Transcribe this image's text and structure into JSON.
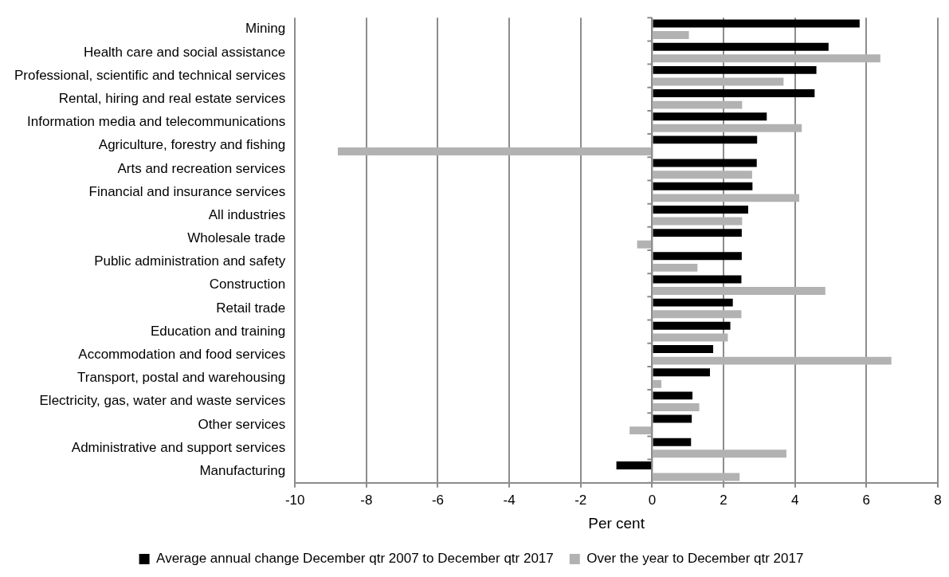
{
  "chart_data": {
    "type": "bar",
    "orientation": "horizontal",
    "xlabel": "Per cent",
    "categories": [
      "Mining",
      "Health care and social assistance",
      "Professional, scientific and technical services",
      "Rental, hiring and real estate services",
      "Information media and telecommunications",
      "Agriculture, forestry and fishing",
      "Arts and recreation services",
      "Financial and insurance services",
      "All industries",
      "Wholesale trade",
      "Public administration and safety",
      "Construction",
      "Retail trade",
      "Education and training",
      "Accommodation and food services",
      "Transport, postal and warehousing",
      "Electricity, gas, water and waste services",
      "Other services",
      "Administrative and support services",
      "Manufacturing"
    ],
    "series": [
      {
        "name": "Average annual change December qtr 2007 to December qtr 2017",
        "color": "#000000",
        "values": [
          5.81,
          4.94,
          4.6,
          4.55,
          3.21,
          2.94,
          2.93,
          2.81,
          2.69,
          2.51,
          2.51,
          2.5,
          2.26,
          2.19,
          1.71,
          1.62,
          1.13,
          1.11,
          1.09,
          -1.0
        ]
      },
      {
        "name": "Over the year to December qtr 2017",
        "color": "#b2b2b2",
        "values": [
          1.03,
          6.39,
          3.68,
          2.52,
          4.19,
          -8.8,
          2.8,
          4.12,
          2.52,
          -0.42,
          1.27,
          4.85,
          2.5,
          2.12,
          6.7,
          0.26,
          1.32,
          -0.63,
          3.76,
          2.45
        ]
      }
    ],
    "xlim": [
      -10,
      8
    ],
    "xticks": [
      -10,
      -8,
      -6,
      -4,
      -2,
      0,
      2,
      4,
      6,
      8
    ],
    "grid": "x",
    "legend": "bottom"
  }
}
